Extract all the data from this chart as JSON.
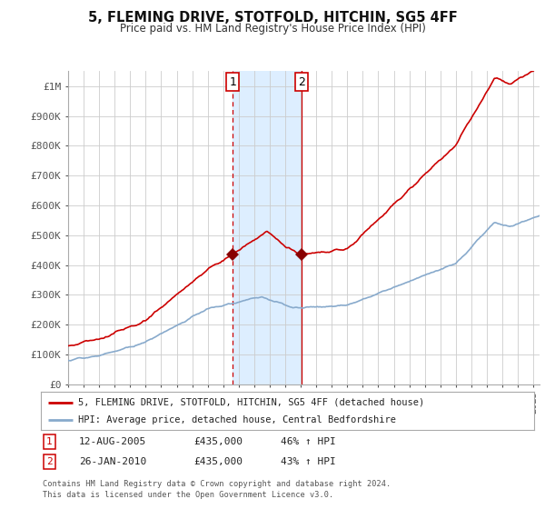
{
  "title": "5, FLEMING DRIVE, STOTFOLD, HITCHIN, SG5 4FF",
  "subtitle": "Price paid vs. HM Land Registry's House Price Index (HPI)",
  "ylabel_ticks": [
    "£0",
    "£100K",
    "£200K",
    "£300K",
    "£400K",
    "£500K",
    "£600K",
    "£700K",
    "£800K",
    "£900K",
    "£1M"
  ],
  "ytick_values": [
    0,
    100000,
    200000,
    300000,
    400000,
    500000,
    600000,
    700000,
    800000,
    900000,
    1000000
  ],
  "ylim": [
    0,
    1050000
  ],
  "xlim_start": 1995.3,
  "xlim_end": 2025.4,
  "sale1_x": 2005.617,
  "sale1_y": 435000,
  "sale1_label": "1",
  "sale1_date": "12-AUG-2005",
  "sale1_price": "£435,000",
  "sale1_hpi": "46% ↑ HPI",
  "sale2_x": 2010.073,
  "sale2_y": 435000,
  "sale2_label": "2",
  "sale2_date": "26-JAN-2010",
  "sale2_price": "£435,000",
  "sale2_hpi": "43% ↑ HPI",
  "house_line_color": "#cc0000",
  "hpi_line_color": "#88aacc",
  "shade_color": "#ddeeff",
  "vline_color": "#cc0000",
  "legend_house": "5, FLEMING DRIVE, STOTFOLD, HITCHIN, SG5 4FF (detached house)",
  "legend_hpi": "HPI: Average price, detached house, Central Bedfordshire",
  "footnote": "Contains HM Land Registry data © Crown copyright and database right 2024.\nThis data is licensed under the Open Government Licence v3.0.",
  "background_color": "#ffffff",
  "grid_color": "#cccccc"
}
